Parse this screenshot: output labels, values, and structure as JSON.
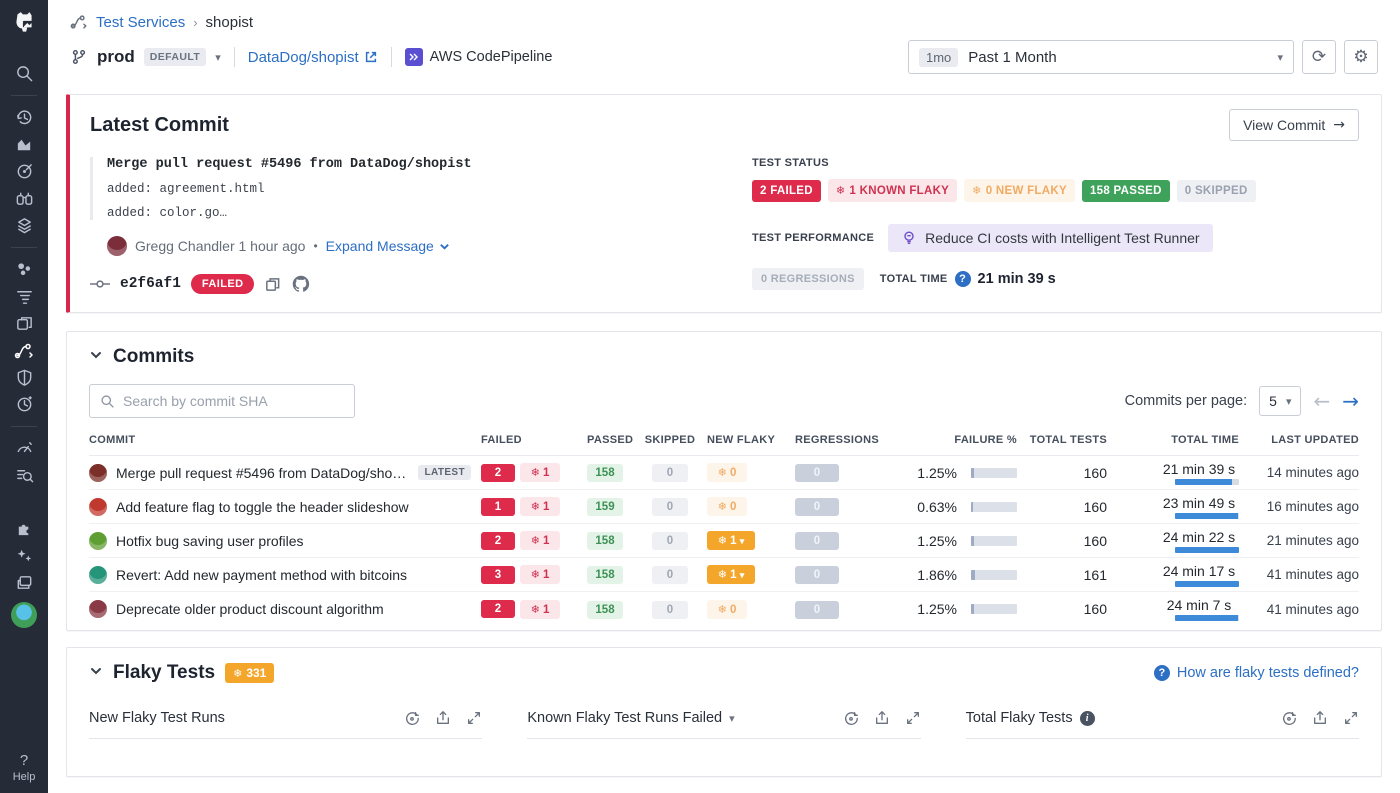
{
  "accent_colors": {
    "red": "#de2b4c",
    "green": "#3fa25b",
    "orange": "#f4a62a",
    "blue": "#2c6fc4",
    "purple": "#6c4fc9",
    "sidebar_bg": "#262b38",
    "time_bar": "#3d8bd8"
  },
  "sidebar": {
    "icons": [
      "datadog-logo",
      "search",
      "history",
      "metrics",
      "scope",
      "binoculars",
      "layers",
      "cluster",
      "traces",
      "frames",
      "ci-pipeline",
      "shield",
      "gauge",
      "speedometer",
      "log-search",
      "puzzle",
      "sparkles",
      "windows",
      "user-avatar"
    ],
    "help_label": "Help",
    "help_q": "?"
  },
  "header": {
    "breadcrumb": {
      "root": "Test Services",
      "sep": "›",
      "current": "shopist"
    },
    "branch": {
      "name": "prod",
      "badge": "DEFAULT",
      "caret": "▾"
    },
    "repo_link": "DataDog/shopist",
    "provider": "AWS CodePipeline",
    "time_range": {
      "badge": "1mo",
      "label": "Past 1 Month",
      "caret": "▾"
    },
    "refresh_glyph": "⟳",
    "gear_glyph": "⚙"
  },
  "latest_commit": {
    "title": "Latest Commit",
    "view_commit_label": "View Commit",
    "view_commit_arrow": "→",
    "message_title": "Merge pull request #5496 from DataDog/shopist",
    "message_lines": [
      "added: agreement.html",
      "added: color.go…"
    ],
    "author": "Gregg Chandler 1 hour ago",
    "bullet": "•",
    "expand_label": "Expand Message",
    "sha": "e2f6af1",
    "sha_status": "FAILED",
    "test_status": {
      "label": "TEST STATUS",
      "badges": [
        {
          "text": "2 FAILED",
          "type": "red",
          "snow": false
        },
        {
          "text": "1 KNOWN FLAKY",
          "type": "pink",
          "snow": true
        },
        {
          "text": "0 NEW FLAKY",
          "type": "orangemuted",
          "snow": true
        },
        {
          "text": "158 PASSED",
          "type": "green",
          "snow": false
        },
        {
          "text": "0 SKIPPED",
          "type": "gray",
          "snow": false
        }
      ]
    },
    "test_performance": {
      "label": "TEST PERFORMANCE",
      "suggestion": "Reduce CI costs with Intelligent Test Runner",
      "regressions": "0 REGRESSIONS",
      "total_time_label": "TOTAL TIME",
      "total_time_help": "?",
      "total_time": "21 min 39 s"
    }
  },
  "commits": {
    "title": "Commits",
    "search_placeholder": "Search by commit SHA",
    "per_page_label": "Commits per page:",
    "per_page_value": "5",
    "per_page_caret": "▾",
    "prev_arrow": "←",
    "next_arrow": "→",
    "latest_badge": "LATEST",
    "snowflake": "❄",
    "columns": [
      "COMMIT",
      "FAILED",
      "PASSED",
      "SKIPPED",
      "NEW FLAKY",
      "REGRESSIONS",
      "FAILURE %",
      "TOTAL TESTS",
      "TOTAL TIME",
      "LAST UPDATED"
    ],
    "rows": [
      {
        "title": "Merge pull request #5496 from DataDog/shopist",
        "latest": true,
        "avatar_color": "#7b2f28",
        "failed": "2",
        "known_flaky": "1",
        "passed": "158",
        "skipped": "0",
        "new_flaky": "0",
        "new_flaky_active": false,
        "regressions": "0",
        "failure_pct": "1.25%",
        "failure_val": 1.25,
        "total_tests": "160",
        "total_time": "21 min 39 s",
        "time_pct": 89,
        "last_updated": "14 minutes ago"
      },
      {
        "title": "Add feature flag to toggle the header slideshow",
        "latest": false,
        "avatar_color": "#c0392f",
        "failed": "1",
        "known_flaky": "1",
        "passed": "159",
        "skipped": "0",
        "new_flaky": "0",
        "new_flaky_active": false,
        "regressions": "0",
        "failure_pct": "0.63%",
        "failure_val": 0.63,
        "total_tests": "160",
        "total_time": "23 min 49 s",
        "time_pct": 98,
        "last_updated": "16 minutes ago"
      },
      {
        "title": "Hotfix bug saving user profiles",
        "latest": false,
        "avatar_color": "#5f9e32",
        "failed": "2",
        "known_flaky": "1",
        "passed": "158",
        "skipped": "0",
        "new_flaky": "1",
        "new_flaky_active": true,
        "regressions": "0",
        "failure_pct": "1.25%",
        "failure_val": 1.25,
        "total_tests": "160",
        "total_time": "24 min 22 s",
        "time_pct": 100,
        "last_updated": "21 minutes ago"
      },
      {
        "title": "Revert: Add new payment method with bitcoins",
        "latest": false,
        "avatar_color": "#259579",
        "failed": "3",
        "known_flaky": "1",
        "passed": "158",
        "skipped": "0",
        "new_flaky": "1",
        "new_flaky_active": true,
        "regressions": "0",
        "failure_pct": "1.86%",
        "failure_val": 1.86,
        "total_tests": "161",
        "total_time": "24 min 17 s",
        "time_pct": 100,
        "last_updated": "41 minutes ago"
      },
      {
        "title": "Deprecate older product discount algorithm",
        "latest": false,
        "avatar_color": "#8a3a44",
        "failed": "2",
        "known_flaky": "1",
        "passed": "158",
        "skipped": "0",
        "new_flaky": "0",
        "new_flaky_active": false,
        "regressions": "0",
        "failure_pct": "1.25%",
        "failure_val": 1.25,
        "total_tests": "160",
        "total_time": "24 min 7 s",
        "time_pct": 99,
        "last_updated": "41 minutes ago"
      }
    ]
  },
  "flaky_tests": {
    "title": "Flaky Tests",
    "count": "331",
    "snowflake": "❄",
    "help_q": "?",
    "help_link": "How are flaky tests defined?",
    "cards": [
      {
        "title": "New Flaky Test Runs",
        "has_dropdown": false,
        "has_info": false
      },
      {
        "title": "Known Flaky Test Runs Failed",
        "has_dropdown": true,
        "has_info": false
      },
      {
        "title": "Total Flaky Tests",
        "has_dropdown": false,
        "has_info": true
      }
    ]
  }
}
